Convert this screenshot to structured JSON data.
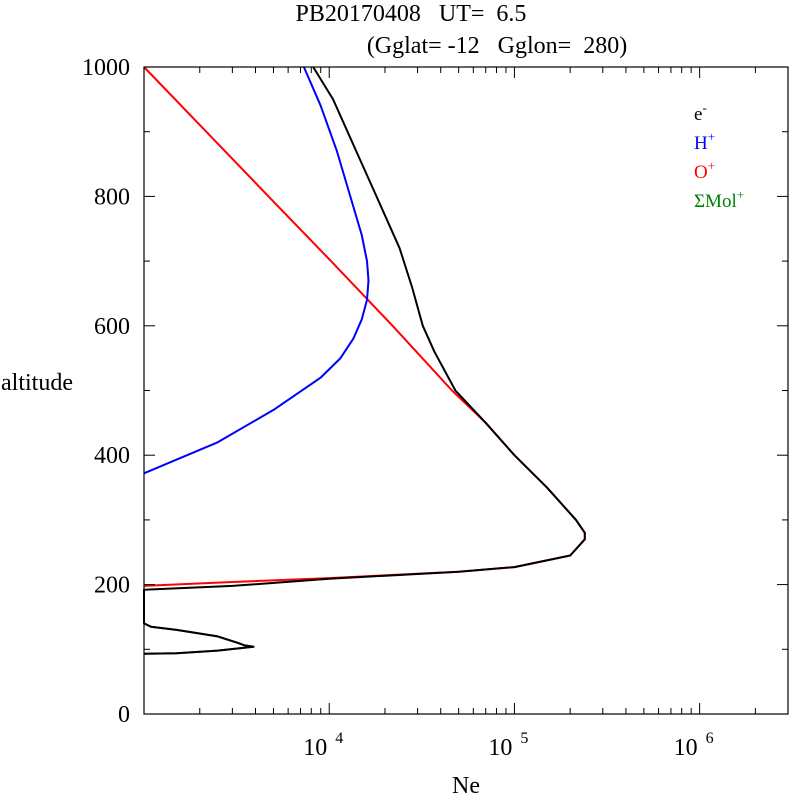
{
  "chart_data": {
    "type": "line",
    "title": "PB20170408   UT=  6.5",
    "subtitle": "(Gglat= -12   Gglon=  280)",
    "xlabel": "Ne",
    "ylabel": "altitude",
    "xscale": "log",
    "xlim": [
      1000,
      3000000
    ],
    "ylim": [
      0,
      1000
    ],
    "x_ticks": [
      {
        "value": 10000,
        "base": "10",
        "exp": "4"
      },
      {
        "value": 100000,
        "base": "10",
        "exp": "5"
      },
      {
        "value": 1000000,
        "base": "10",
        "exp": "6"
      }
    ],
    "y_ticks": [
      {
        "value": 0,
        "label": "0"
      },
      {
        "value": 200,
        "label": "200"
      },
      {
        "value": 400,
        "label": "400"
      },
      {
        "value": 600,
        "label": "600"
      },
      {
        "value": 800,
        "label": "800"
      },
      {
        "value": 1000,
        "label": "1000"
      }
    ],
    "legend": {
      "placement": "top-right",
      "entries": [
        {
          "name": "e",
          "sup": "-",
          "color": "#000000"
        },
        {
          "name": "H",
          "sup": "+",
          "color": "#0000ff"
        },
        {
          "name": "O",
          "sup": "+",
          "color": "#ff0000"
        },
        {
          "name": "ΣMol",
          "sup": "+",
          "color": "#008000"
        }
      ]
    },
    "series": [
      {
        "name": "Mol+",
        "color": "#008000",
        "points": [
          [
            1000,
            150
          ],
          [
            1000,
            140
          ],
          [
            1090,
            135
          ],
          [
            1500,
            130
          ],
          [
            2500,
            120
          ],
          [
            3200,
            110
          ],
          [
            3500,
            106
          ],
          [
            3900,
            104
          ],
          [
            2500,
            98
          ],
          [
            1500,
            94
          ],
          [
            1000,
            93
          ]
        ]
      },
      {
        "name": "O+",
        "color": "#ff0000",
        "points": [
          [
            1000,
            1000
          ],
          [
            4700,
            800
          ],
          [
            10000,
            703
          ],
          [
            22000,
            600
          ],
          [
            46000,
            500
          ],
          [
            70000,
            450
          ],
          [
            100000,
            400
          ],
          [
            150000,
            350
          ],
          [
            215000,
            300
          ],
          [
            240000,
            280
          ],
          [
            240000,
            270
          ],
          [
            200000,
            245
          ],
          [
            100000,
            227
          ],
          [
            50000,
            220
          ],
          [
            10000,
            210
          ],
          [
            3000,
            204
          ],
          [
            1000,
            198
          ]
        ]
      },
      {
        "name": "H+",
        "color": "#0000ff",
        "points": [
          [
            1000,
            372
          ],
          [
            2500,
            420
          ],
          [
            5000,
            470
          ],
          [
            9000,
            520
          ],
          [
            11500,
            550
          ],
          [
            13500,
            580
          ],
          [
            15000,
            610
          ],
          [
            16000,
            640
          ],
          [
            16300,
            670
          ],
          [
            16000,
            700
          ],
          [
            15000,
            740
          ],
          [
            13000,
            800
          ],
          [
            11000,
            870
          ],
          [
            9000,
            940
          ],
          [
            7300,
            1000
          ]
        ]
      },
      {
        "name": "e-",
        "color": "#000000",
        "points": [
          [
            1000,
            93
          ],
          [
            1500,
            94
          ],
          [
            2500,
            98
          ],
          [
            3900,
            104
          ],
          [
            3500,
            106
          ],
          [
            3200,
            110
          ],
          [
            2500,
            120
          ],
          [
            1500,
            130
          ],
          [
            1090,
            135
          ],
          [
            1000,
            140
          ],
          [
            1000,
            150
          ],
          [
            1000,
            192
          ],
          [
            3000,
            198
          ],
          [
            10000,
            209
          ],
          [
            50000,
            220
          ],
          [
            100000,
            227
          ],
          [
            200000,
            245
          ],
          [
            240000,
            270
          ],
          [
            240000,
            280
          ],
          [
            215000,
            300
          ],
          [
            150000,
            350
          ],
          [
            100000,
            400
          ],
          [
            70000,
            450
          ],
          [
            48000,
            500
          ],
          [
            37000,
            560
          ],
          [
            32000,
            600
          ],
          [
            28000,
            660
          ],
          [
            24000,
            720
          ],
          [
            18000,
            800
          ],
          [
            13500,
            880
          ],
          [
            10500,
            950
          ],
          [
            8200,
            1000
          ]
        ]
      }
    ]
  }
}
